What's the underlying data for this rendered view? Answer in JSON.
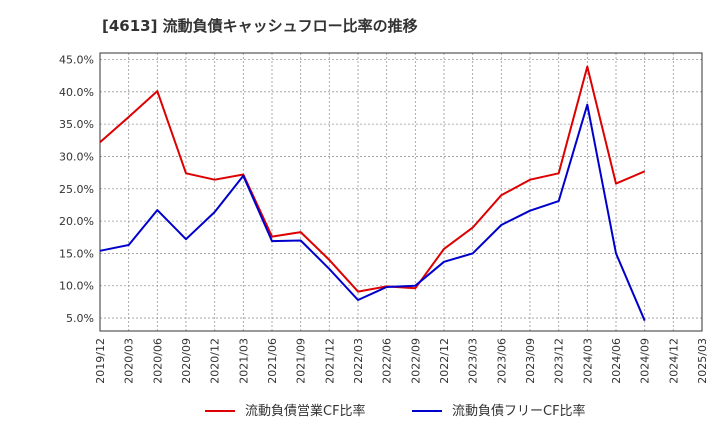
{
  "chart_data": {
    "type": "line",
    "title": "[4613]  流動負債キャッシュフロー比率の推移",
    "xlabel": "",
    "ylabel": "",
    "ylim": [
      3.0,
      46.0
    ],
    "y_ticks": [
      "5.0%",
      "10.0%",
      "15.0%",
      "20.0%",
      "25.0%",
      "30.0%",
      "35.0%",
      "40.0%",
      "45.0%"
    ],
    "y_tick_values": [
      5,
      10,
      15,
      20,
      25,
      30,
      35,
      40,
      45
    ],
    "x_ticks": [
      "2019/12",
      "2020/03",
      "2020/06",
      "2020/09",
      "2020/12",
      "2021/03",
      "2021/06",
      "2021/09",
      "2021/12",
      "2022/03",
      "2022/06",
      "2022/09",
      "2022/12",
      "2023/03",
      "2023/06",
      "2023/09",
      "2023/12",
      "2024/03",
      "2024/06",
      "2024/09",
      "2024/12",
      "2025/03"
    ],
    "grid": true,
    "legend_position": "bottom",
    "series": [
      {
        "name": "流動負債営業CF比率",
        "color": "#dd0000",
        "points": [
          {
            "x": "2019/12",
            "y": 32.2
          },
          {
            "x": "2020/03",
            "y": 36.1
          },
          {
            "x": "2020/06",
            "y": 40.1
          },
          {
            "x": "2020/09",
            "y": 27.4
          },
          {
            "x": "2020/12",
            "y": 26.4
          },
          {
            "x": "2021/03",
            "y": 27.2
          },
          {
            "x": "2021/06",
            "y": 17.6
          },
          {
            "x": "2021/09",
            "y": 18.3
          },
          {
            "x": "2021/12",
            "y": 14.0
          },
          {
            "x": "2022/03",
            "y": 9.1
          },
          {
            "x": "2022/06",
            "y": 9.9
          },
          {
            "x": "2022/09",
            "y": 9.6
          },
          {
            "x": "2022/12",
            "y": 15.7
          },
          {
            "x": "2023/03",
            "y": 19.0
          },
          {
            "x": "2023/06",
            "y": 24.0
          },
          {
            "x": "2023/09",
            "y": 26.4
          },
          {
            "x": "2023/12",
            "y": 27.4
          },
          {
            "x": "2024/03",
            "y": 43.9
          },
          {
            "x": "2024/06",
            "y": 25.8
          },
          {
            "x": "2024/09",
            "y": 27.7
          }
        ]
      },
      {
        "name": "流動負債フリーCF比率",
        "color": "#0000cc",
        "points": [
          {
            "x": "2019/12",
            "y": 15.4
          },
          {
            "x": "2020/03",
            "y": 16.3
          },
          {
            "x": "2020/06",
            "y": 21.7
          },
          {
            "x": "2020/09",
            "y": 17.2
          },
          {
            "x": "2020/12",
            "y": 21.4
          },
          {
            "x": "2021/03",
            "y": 27.0
          },
          {
            "x": "2021/06",
            "y": 16.9
          },
          {
            "x": "2021/09",
            "y": 17.0
          },
          {
            "x": "2021/12",
            "y": 12.6
          },
          {
            "x": "2022/03",
            "y": 7.8
          },
          {
            "x": "2022/06",
            "y": 9.8
          },
          {
            "x": "2022/09",
            "y": 10.0
          },
          {
            "x": "2022/12",
            "y": 13.7
          },
          {
            "x": "2023/03",
            "y": 15.0
          },
          {
            "x": "2023/06",
            "y": 19.4
          },
          {
            "x": "2023/09",
            "y": 21.6
          },
          {
            "x": "2023/12",
            "y": 23.1
          },
          {
            "x": "2024/03",
            "y": 38.0
          },
          {
            "x": "2024/06",
            "y": 15.0
          },
          {
            "x": "2024/09",
            "y": 4.6
          }
        ]
      }
    ]
  }
}
